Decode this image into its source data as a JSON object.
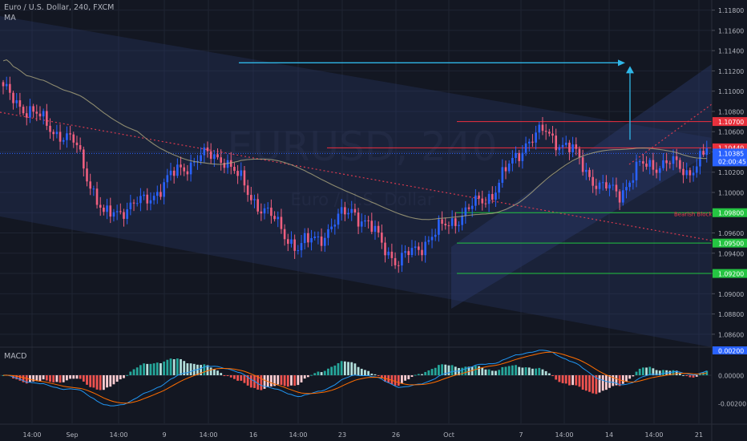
{
  "header": {
    "symbol_title": "Euro / U.S. Dollar, 240, FXCM",
    "ma_label": "MA"
  },
  "watermark": {
    "big": "EURUSD, 240",
    "small": "Euro / U.S. Dollar"
  },
  "macd": {
    "label": "MACD"
  },
  "price_tags": {
    "current_price": "1.10385",
    "countdown": "02:00:45"
  },
  "colors": {
    "background": "#131722",
    "bull": "#2962ff",
    "bear": "#ef5f7f",
    "channel_fill": "#2a3a6a",
    "resistance": "#ef2f3f",
    "support": "#22c540",
    "target_arrow": "#2fb7e8",
    "ma_line": "#b4ad82"
  },
  "annotations": {
    "bearish_label": "Bearish Block"
  },
  "chart_data": {
    "type": "candlestick",
    "title": "Euro / U.S. Dollar, 240, FXCM",
    "ylim": [
      1.0848,
      1.119
    ],
    "y_ticks": [
      "1.11800",
      "1.11600",
      "1.11400",
      "1.11200",
      "1.11000",
      "1.10800",
      "1.10600",
      "1.10400",
      "1.10200",
      "1.10000",
      "1.09800",
      "1.09600",
      "1.09400",
      "1.09200",
      "1.09000",
      "1.08800",
      "1.08600"
    ],
    "x_ticks": [
      "14:00",
      "Sep",
      "14:00",
      "9",
      "14:00",
      "16",
      "14:00",
      "23",
      "26",
      "Oct",
      "7",
      "14:00",
      "14",
      "14:00",
      "21"
    ],
    "horizontal_levels": [
      {
        "value": 1.107,
        "label": "1.10700",
        "color": "red"
      },
      {
        "value": 1.1044,
        "label": "1.10440",
        "color": "red"
      },
      {
        "value": 1.098,
        "label": "1.09800",
        "color": "green"
      },
      {
        "value": 1.095,
        "label": "1.09500",
        "color": "green"
      },
      {
        "value": 1.092,
        "label": "1.09200",
        "color": "green"
      }
    ],
    "anchors": [
      {
        "x": 0,
        "price": 1.11
      },
      {
        "x": 12,
        "price": 1.107
      },
      {
        "x": 22,
        "price": 1.1045
      },
      {
        "x": 30,
        "price": 1.0975
      },
      {
        "x": 36,
        "price": 1.0985
      },
      {
        "x": 42,
        "price": 1.099
      },
      {
        "x": 50,
        "price": 1.1015
      },
      {
        "x": 58,
        "price": 1.1035
      },
      {
        "x": 66,
        "price": 1.1035
      },
      {
        "x": 73,
        "price": 1.1
      },
      {
        "x": 80,
        "price": 1.0975
      },
      {
        "x": 88,
        "price": 1.0945
      },
      {
        "x": 96,
        "price": 1.096
      },
      {
        "x": 104,
        "price": 1.0985
      },
      {
        "x": 112,
        "price": 1.0955
      },
      {
        "x": 118,
        "price": 1.093
      },
      {
        "x": 126,
        "price": 1.0952
      },
      {
        "x": 134,
        "price": 1.0972
      },
      {
        "x": 140,
        "price": 1.0985
      },
      {
        "x": 146,
        "price": 1.1
      },
      {
        "x": 150,
        "price": 1.102
      },
      {
        "x": 156,
        "price": 1.105
      },
      {
        "x": 162,
        "price": 1.106
      },
      {
        "x": 170,
        "price": 1.104
      },
      {
        "x": 178,
        "price": 1.1005
      },
      {
        "x": 184,
        "price": 1.1
      },
      {
        "x": 190,
        "price": 1.1025
      },
      {
        "x": 198,
        "price": 1.103
      },
      {
        "x": 204,
        "price": 1.102
      },
      {
        "x": 210,
        "price": 1.104
      }
    ]
  }
}
